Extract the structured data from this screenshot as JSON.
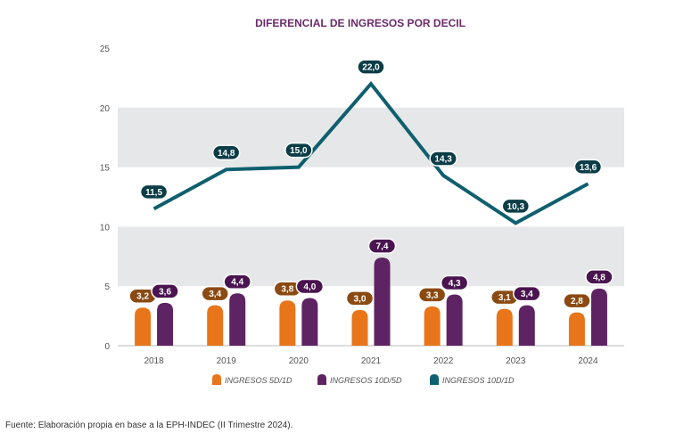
{
  "chart_data": {
    "type": "bar",
    "title": "DIFERENCIAL DE INGRESOS POR DECIL",
    "categories": [
      "2018",
      "2019",
      "2020",
      "2021",
      "2022",
      "2023",
      "2024"
    ],
    "ylim": [
      0,
      25
    ],
    "yticks": [
      0,
      5,
      10,
      15,
      20,
      25
    ],
    "xlabel": "",
    "ylabel": "",
    "series": [
      {
        "name": "INGRESOS 5D/1D",
        "kind": "bar",
        "color": "#e8751a",
        "label_color": "#8a4a12",
        "values": [
          3.2,
          3.4,
          3.8,
          3.0,
          3.3,
          3.1,
          2.8
        ],
        "labels": [
          "3,2",
          "3,4",
          "3,8",
          "3,0",
          "3,3",
          "3,1",
          "2,8"
        ]
      },
      {
        "name": "INGRESOS 10D/5D",
        "kind": "bar",
        "color": "#5e2363",
        "label_color": "#4a1450",
        "values": [
          3.6,
          4.4,
          4.0,
          7.4,
          4.3,
          3.4,
          4.8
        ],
        "labels": [
          "3,6",
          "4,4",
          "4,0",
          "7,4",
          "4,3",
          "3,4",
          "4,8"
        ]
      },
      {
        "name": "INGRESOS 10D/1D",
        "kind": "line",
        "color": "#0f5f6e",
        "label_color": "#0b3d47",
        "values": [
          11.5,
          14.8,
          15.0,
          22.0,
          14.3,
          10.3,
          13.6
        ],
        "labels": [
          "11,5",
          "14,8",
          "15,0",
          "22,0",
          "14,3",
          "10,3",
          "13,6"
        ]
      }
    ],
    "legend": "bottom",
    "grid": "alternating bands"
  },
  "source": "Fuente: Elaboración propia en base a la EPH-INDEC (II Trimestre 2024)."
}
